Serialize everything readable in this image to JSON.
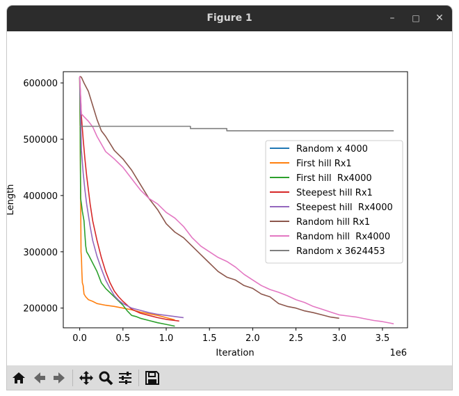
{
  "window": {
    "title": "Figure 1",
    "controls": {
      "minimize": "–",
      "maximize": "□",
      "close": "✕"
    }
  },
  "toolbar": {
    "buttons": [
      {
        "name": "home-icon"
      },
      {
        "name": "back-icon"
      },
      {
        "name": "forward-icon"
      },
      {
        "name": "pan-icon"
      },
      {
        "name": "zoom-icon"
      },
      {
        "name": "configure-subplots-icon"
      },
      {
        "name": "save-icon"
      }
    ]
  },
  "chart_data": {
    "type": "line",
    "title": "",
    "xlabel": "Iteration",
    "ylabel": "Length",
    "x_scale_label": "1e6",
    "xlim": [
      -0.19,
      3.79
    ],
    "ylim": [
      165000,
      620000
    ],
    "xticks": [
      0.0,
      0.5,
      1.0,
      1.5,
      2.0,
      2.5,
      3.0,
      3.5
    ],
    "xtick_labels": [
      "0.0",
      "0.5",
      "1.0",
      "1.5",
      "2.0",
      "2.5",
      "3.0",
      "3.5"
    ],
    "yticks": [
      200000,
      300000,
      400000,
      500000,
      600000
    ],
    "ytick_labels": [
      "200000",
      "300000",
      "400000",
      "500000",
      "600000"
    ],
    "legend_position": "center-right",
    "series": [
      {
        "name": "Random x 4000",
        "color": "#1f77b4",
        "x": [
          0.0,
          0.004
        ],
        "y": [
          523000,
          523000
        ]
      },
      {
        "name": "First hill Rx1",
        "color": "#ff7f0e",
        "x": [
          0.0,
          0.01,
          0.015,
          0.02,
          0.025,
          0.03,
          0.04,
          0.05,
          0.07,
          0.1,
          0.15,
          0.2,
          0.3,
          0.4,
          0.5,
          0.6,
          0.7,
          0.8,
          0.9,
          1.0,
          1.1
        ],
        "y": [
          610000,
          420000,
          300000,
          290000,
          265000,
          245000,
          240000,
          225000,
          220000,
          215000,
          212000,
          208000,
          205000,
          203000,
          200000,
          197000,
          193000,
          190000,
          187000,
          183000,
          179000
        ]
      },
      {
        "name": "First hill  Rx4000",
        "color": "#2ca02c",
        "x": [
          0.0,
          0.005,
          0.01,
          0.02,
          0.03,
          0.05,
          0.06,
          0.07,
          0.08,
          0.1,
          0.15,
          0.2,
          0.25,
          0.3,
          0.4,
          0.5,
          0.55,
          0.6,
          0.65,
          0.7,
          0.8,
          0.9,
          1.0,
          1.1
        ],
        "y": [
          610000,
          520000,
          395000,
          385000,
          372000,
          355000,
          330000,
          310000,
          300000,
          295000,
          280000,
          265000,
          245000,
          235000,
          220000,
          205000,
          195000,
          187000,
          185000,
          182000,
          178000,
          174000,
          171000,
          168000
        ]
      },
      {
        "name": "Steepest hill Rx1",
        "color": "#d62728",
        "x": [
          0.0,
          0.02,
          0.04,
          0.06,
          0.08,
          0.1,
          0.12,
          0.15,
          0.2,
          0.25,
          0.3,
          0.35,
          0.4,
          0.45,
          0.5,
          0.55,
          0.6,
          0.7,
          0.8,
          0.9,
          1.0,
          1.1,
          1.15
        ],
        "y": [
          610000,
          540000,
          500000,
          465000,
          435000,
          410000,
          385000,
          355000,
          320000,
          290000,
          265000,
          245000,
          230000,
          220000,
          212000,
          205000,
          198000,
          191000,
          187000,
          183000,
          180000,
          178000,
          177000
        ]
      },
      {
        "name": "Steepest hill  Rx4000",
        "color": "#9467bd",
        "x": [
          0.0,
          0.02,
          0.04,
          0.06,
          0.08,
          0.1,
          0.12,
          0.15,
          0.2,
          0.25,
          0.3,
          0.35,
          0.4,
          0.45,
          0.5,
          0.6,
          0.7,
          0.8,
          0.9,
          1.0,
          1.1,
          1.2
        ],
        "y": [
          610000,
          480000,
          440000,
          410000,
          385000,
          365000,
          345000,
          320000,
          292000,
          270000,
          250000,
          235000,
          222000,
          214000,
          208000,
          200000,
          196000,
          192000,
          189000,
          187000,
          185000,
          183000
        ]
      },
      {
        "name": "Random hill Rx1",
        "color": "#8c564b",
        "x": [
          0.0,
          0.02,
          0.05,
          0.1,
          0.15,
          0.2,
          0.25,
          0.3,
          0.4,
          0.5,
          0.6,
          0.7,
          0.8,
          0.9,
          1.0,
          1.1,
          1.2,
          1.3,
          1.4,
          1.5,
          1.6,
          1.7,
          1.8,
          1.9,
          2.0,
          2.1,
          2.2,
          2.3,
          2.4,
          2.5,
          2.6,
          2.7,
          2.8,
          2.9,
          3.0
        ],
        "y": [
          612000,
          610000,
          600000,
          585000,
          560000,
          535000,
          515000,
          505000,
          480000,
          465000,
          445000,
          420000,
          395000,
          375000,
          350000,
          335000,
          325000,
          310000,
          295000,
          280000,
          265000,
          255000,
          250000,
          240000,
          235000,
          225000,
          220000,
          208000,
          203000,
          200000,
          195000,
          192000,
          188000,
          184000,
          182000
        ]
      },
      {
        "name": "Random hill  Rx4000",
        "color": "#e377c2",
        "x": [
          0.0,
          0.02,
          0.05,
          0.1,
          0.15,
          0.2,
          0.3,
          0.4,
          0.5,
          0.6,
          0.7,
          0.8,
          0.9,
          1.0,
          1.1,
          1.2,
          1.3,
          1.4,
          1.5,
          1.6,
          1.7,
          1.8,
          1.9,
          2.0,
          2.1,
          2.2,
          2.3,
          2.4,
          2.5,
          2.6,
          2.7,
          2.8,
          2.9,
          3.0,
          3.1,
          3.2,
          3.3,
          3.4,
          3.5,
          3.6,
          3.63
        ],
        "y": [
          612000,
          545000,
          540000,
          532000,
          522000,
          505000,
          478000,
          465000,
          450000,
          430000,
          410000,
          395000,
          385000,
          370000,
          360000,
          345000,
          325000,
          310000,
          300000,
          290000,
          283000,
          273000,
          260000,
          250000,
          240000,
          233000,
          228000,
          222000,
          215000,
          210000,
          203000,
          198000,
          193000,
          188000,
          186000,
          184000,
          181000,
          178000,
          176000,
          173000,
          172000
        ]
      },
      {
        "name": "Random x 3624453",
        "color": "#7f7f7f",
        "x": [
          0.0,
          1.28,
          1.28,
          1.7,
          1.7,
          3.63
        ],
        "y": [
          523000,
          523000,
          519000,
          519000,
          515000,
          515000
        ]
      }
    ]
  }
}
